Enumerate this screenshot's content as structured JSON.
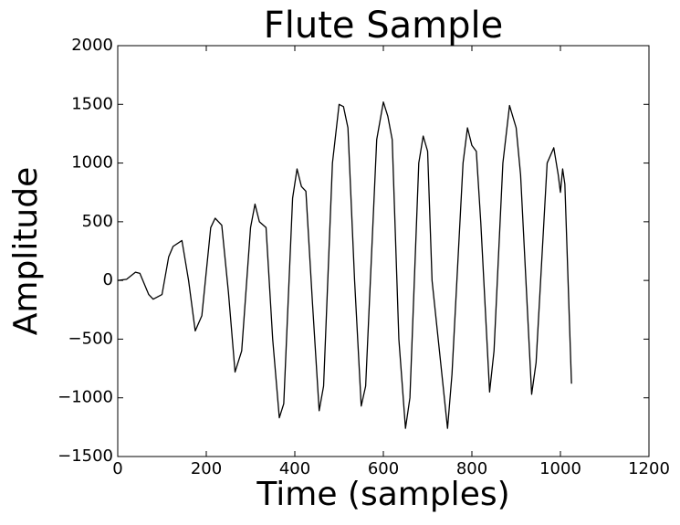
{
  "chart_data": {
    "type": "line",
    "title": "Flute Sample",
    "x_label": "Time (samples)",
    "y_label": "Amplitude",
    "x": [
      0,
      20,
      40,
      50,
      70,
      80,
      100,
      115,
      125,
      145,
      160,
      175,
      190,
      210,
      220,
      235,
      250,
      265,
      280,
      300,
      310,
      320,
      335,
      350,
      365,
      375,
      395,
      405,
      415,
      425,
      440,
      455,
      465,
      485,
      500,
      510,
      520,
      535,
      550,
      560,
      585,
      600,
      610,
      620,
      635,
      650,
      660,
      680,
      690,
      700,
      710,
      745,
      755,
      780,
      790,
      800,
      810,
      820,
      840,
      850,
      870,
      885,
      900,
      910,
      935,
      945,
      970,
      985,
      995,
      1000,
      1005,
      1010,
      1025
    ],
    "series": [
      {
        "color": "#000000",
        "values": [
          0,
          10,
          70,
          60,
          -120,
          -160,
          -120,
          200,
          290,
          340,
          0,
          -430,
          -300,
          450,
          530,
          470,
          -100,
          -780,
          -600,
          450,
          650,
          500,
          450,
          -500,
          -1170,
          -1050,
          700,
          950,
          800,
          760,
          -200,
          -1110,
          -900,
          1000,
          1500,
          1480,
          1300,
          0,
          -1070,
          -900,
          1200,
          1520,
          1400,
          1200,
          -500,
          -1260,
          -1000,
          1000,
          1230,
          1100,
          0,
          -1260,
          -800,
          1000,
          1300,
          1150,
          1100,
          500,
          -950,
          -600,
          1000,
          1490,
          1300,
          900,
          -970,
          -700,
          1000,
          1130,
          900,
          750,
          950,
          820,
          -880
        ]
      }
    ],
    "xlim": [
      0,
      1200
    ],
    "xticks": [
      0,
      200,
      400,
      600,
      800,
      1000,
      1200
    ],
    "ylim": [
      -1500,
      2000
    ],
    "yticks": [
      {
        "value": -1500,
        "label": "−1500"
      },
      {
        "value": -1000,
        "label": "−1000"
      },
      {
        "value": -500,
        "label": "−500"
      },
      0,
      500,
      1000,
      1500,
      2000
    ]
  }
}
